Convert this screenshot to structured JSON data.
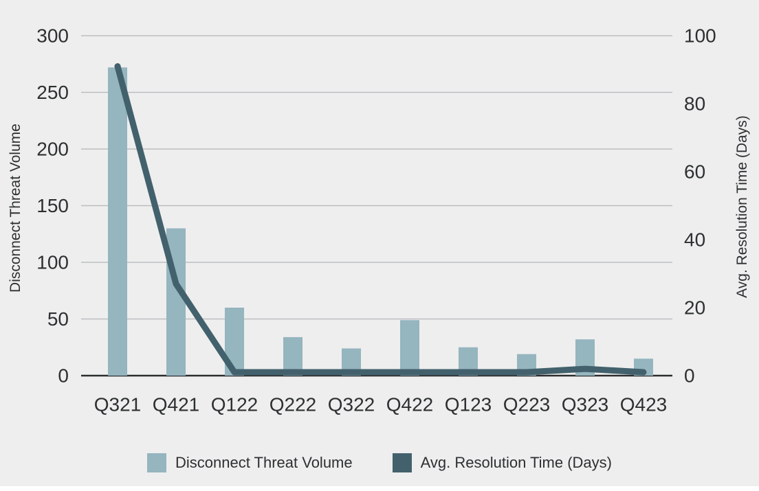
{
  "chart_data": {
    "type": "bar",
    "subtype": "dual-axis combo (bar + line)",
    "categories": [
      "Q321",
      "Q421",
      "Q122",
      "Q222",
      "Q322",
      "Q422",
      "Q123",
      "Q223",
      "Q323",
      "Q423"
    ],
    "series": [
      {
        "name": "Disconnect Threat Volume",
        "type": "bar",
        "axis": "left",
        "color": "#95b5bf",
        "values": [
          272,
          130,
          60,
          34,
          24,
          49,
          25,
          19,
          32,
          15
        ]
      },
      {
        "name": "Avg. Resolution Time (Days)",
        "type": "line",
        "axis": "right",
        "color": "#42616c",
        "values": [
          91,
          27,
          1,
          1,
          1,
          1,
          1,
          1,
          2,
          1
        ]
      }
    ],
    "y_left": {
      "label": "Disconnect Threat Volume",
      "min": 0,
      "max": 300,
      "step": 50,
      "ticks": [
        "0",
        "50",
        "100",
        "150",
        "200",
        "250",
        "300"
      ]
    },
    "y_right": {
      "label": "Avg. Resolution Time (Days)",
      "min": 0,
      "max": 100,
      "step": 20,
      "ticks": [
        "0",
        "20",
        "40",
        "60",
        "80",
        "100"
      ]
    },
    "title": "",
    "xlabel": "",
    "grid": true,
    "legend_position": "bottom",
    "colors": {
      "background": "#eeeeee",
      "gridline": "#bcbdc1",
      "axis_line": "#2a2c2e",
      "text": "#2d2f31"
    }
  }
}
